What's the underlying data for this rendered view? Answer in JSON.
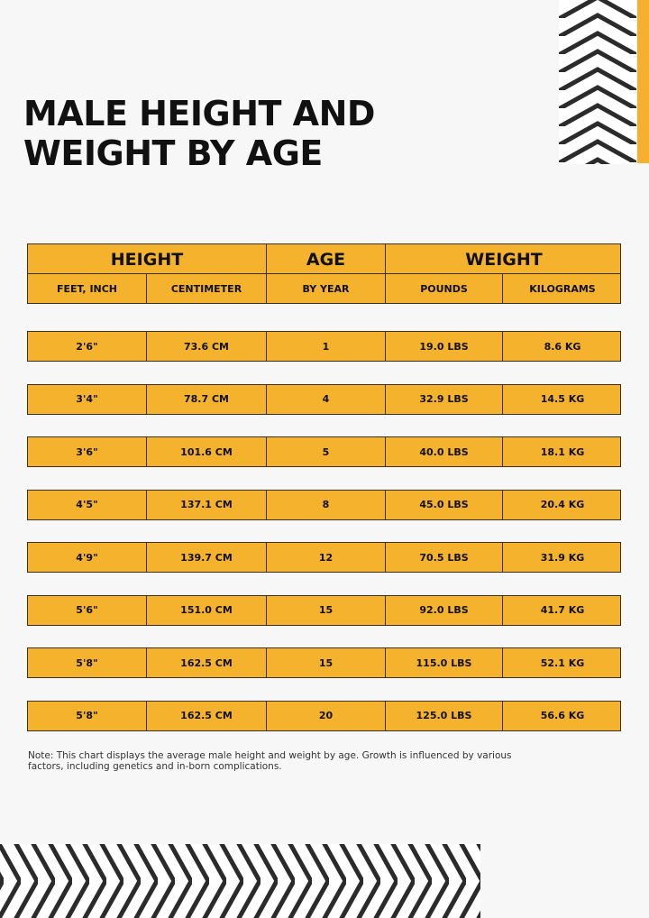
{
  "title_line1": "MALE HEIGHT AND",
  "title_line2": "WEIGHT BY AGE",
  "colors": {
    "accent": "#f5b22d",
    "border": "#3a3020",
    "background": "#f6f7f6",
    "pattern": "#2b2b2b"
  },
  "table": {
    "groups": [
      "HEIGHT",
      "AGE",
      "WEIGHT"
    ],
    "columns": [
      "FEET, INCH",
      "CENTIMETER",
      "BY YEAR",
      "POUNDS",
      "KILOGRAMS"
    ],
    "rows": [
      [
        "2'6\"",
        "73.6 CM",
        "1",
        "19.0 LBS",
        "8.6 KG"
      ],
      [
        "3'4\"",
        "78.7 CM",
        "4",
        "32.9 LBS",
        "14.5 KG"
      ],
      [
        "3'6\"",
        "101.6 CM",
        "5",
        "40.0 LBS",
        "18.1 KG"
      ],
      [
        "4'5\"",
        "137.1 CM",
        "8",
        "45.0 LBS",
        "20.4 KG"
      ],
      [
        "4'9\"",
        "139.7 CM",
        "12",
        "70.5 LBS",
        "31.9 KG"
      ],
      [
        "5'6\"",
        "151.0 CM",
        "15",
        "92.0 LBS",
        "41.7 KG"
      ],
      [
        "5'8\"",
        "162.5 CM",
        "15",
        "115.0 LBS",
        "52.1 KG"
      ],
      [
        "5'8\"",
        "162.5 CM",
        "20",
        "125.0 LBS",
        "56.6 KG"
      ]
    ]
  },
  "note": "Note: This chart displays the average male height and weight by age. Growth is influenced by various factors, including genetics and in-born complications."
}
